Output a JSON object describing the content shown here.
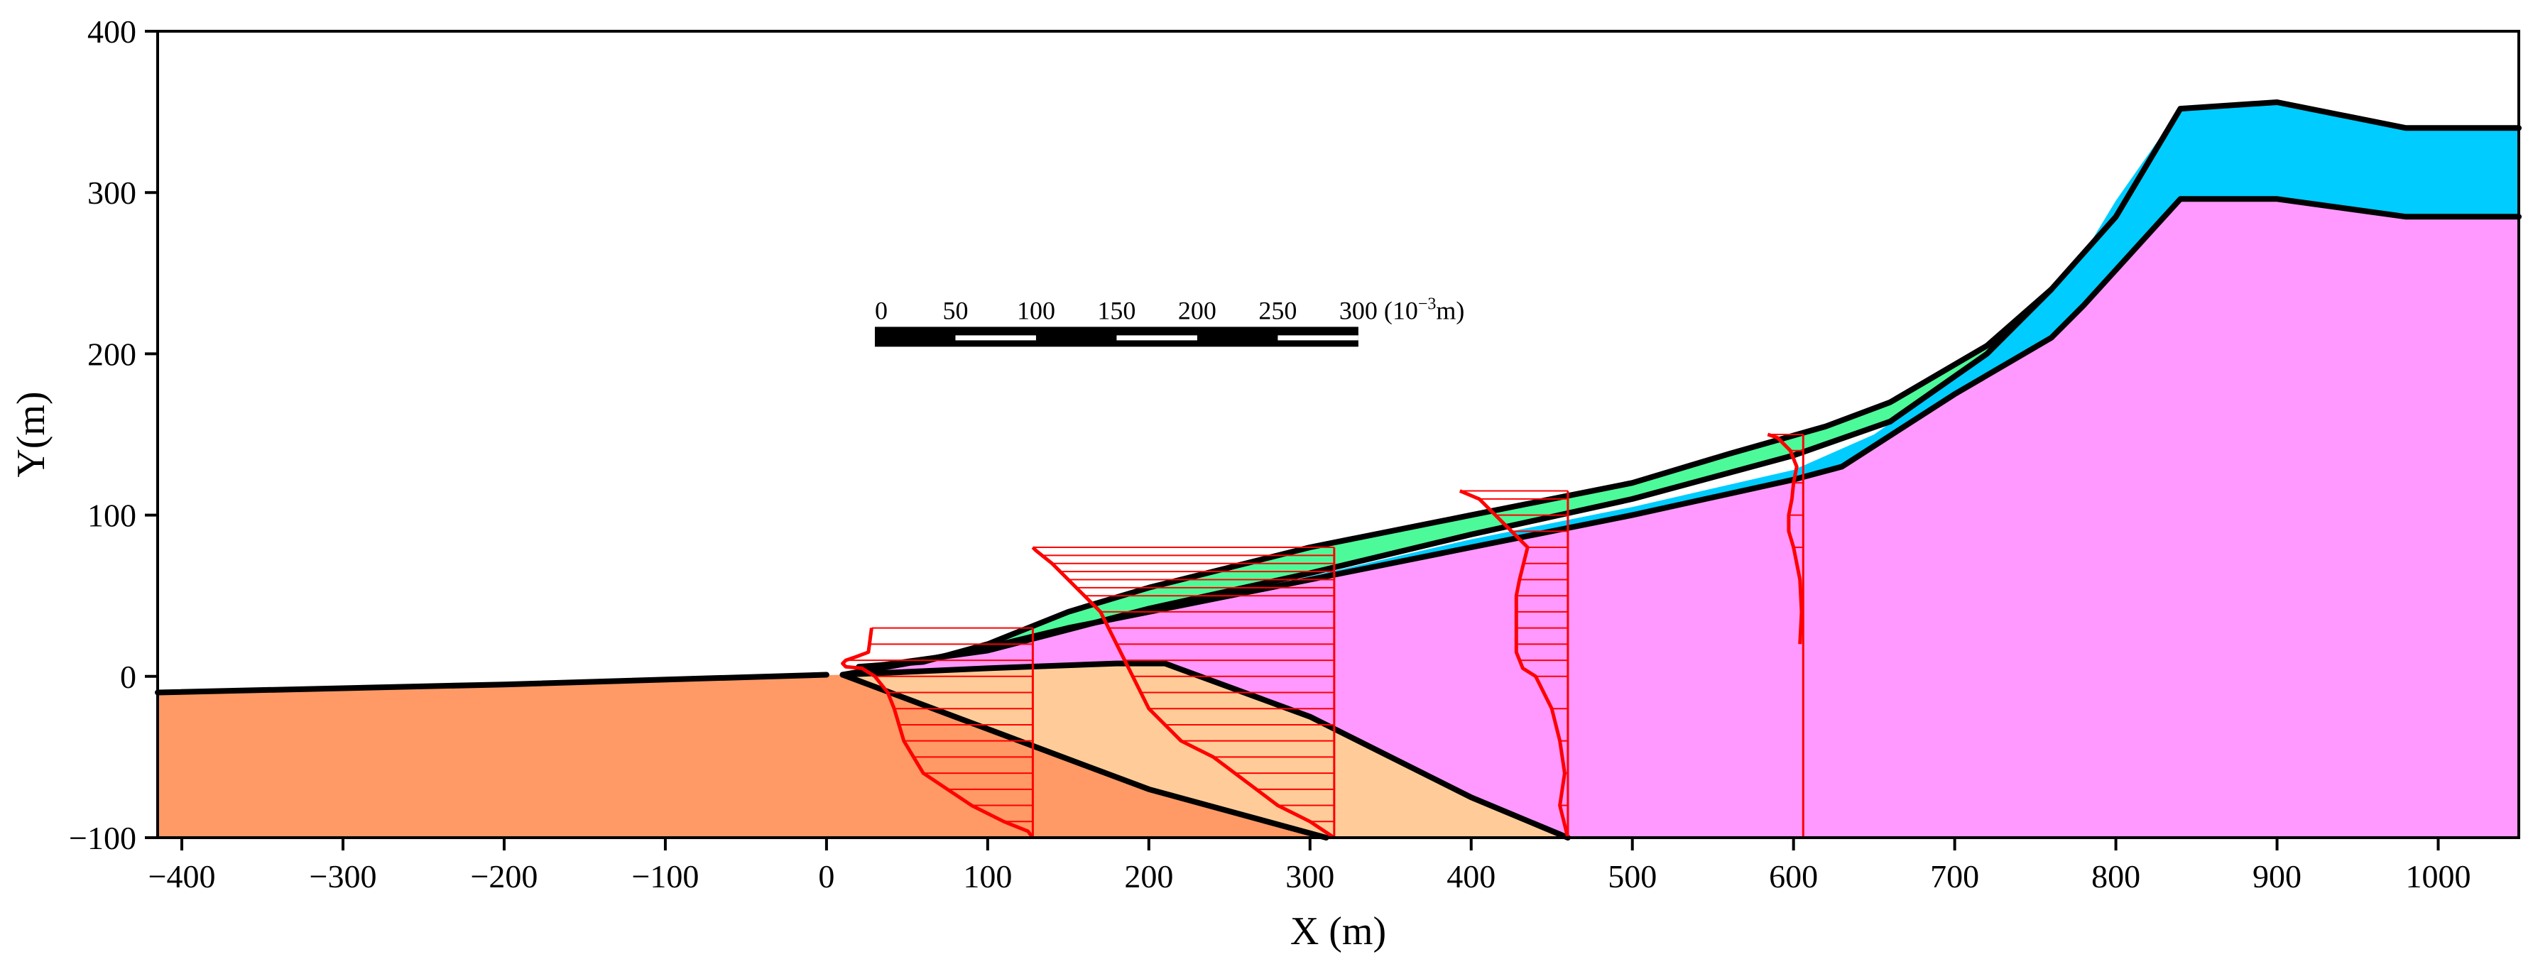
{
  "chart_data": {
    "type": "diagram",
    "title": "",
    "xlabel": "X (m)",
    "ylabel": "Y(m)",
    "xlim": [
      -415,
      1050
    ],
    "ylim": [
      -100,
      400
    ],
    "xticks": [
      -400,
      -300,
      -200,
      -100,
      0,
      100,
      200,
      300,
      400,
      500,
      600,
      700,
      800,
      900,
      1000
    ],
    "yticks": [
      -100,
      0,
      100,
      200,
      300,
      400
    ],
    "colors": {
      "orange_layer": "#FF9966",
      "tan_layer": "#FFCC99",
      "pink_layer": "#FF99FF",
      "blue_layer": "#00CCFF",
      "green_layer": "#4DFA99",
      "profile_line": "#FF0000",
      "boundary": "#000000"
    },
    "layers": [
      {
        "name": "orange",
        "polygon": [
          [
            -415,
            -10
          ],
          [
            10,
            1
          ],
          [
            310,
            -100
          ],
          [
            -415,
            -100
          ]
        ]
      },
      {
        "name": "tan",
        "polygon": [
          [
            10,
            1
          ],
          [
            100,
            5
          ],
          [
            180,
            8
          ],
          [
            210,
            8
          ],
          [
            300,
            -25
          ],
          [
            400,
            -75
          ],
          [
            460,
            -100
          ],
          [
            310,
            -100
          ],
          [
            200,
            -70
          ]
        ]
      },
      {
        "name": "pink",
        "polygon": [
          [
            10,
            1
          ],
          [
            100,
            5
          ],
          [
            180,
            8
          ],
          [
            210,
            8
          ],
          [
            300,
            -25
          ],
          [
            400,
            -75
          ],
          [
            460,
            -100
          ],
          [
            1050,
            -100
          ],
          [
            1050,
            285
          ],
          [
            980,
            285
          ],
          [
            900,
            296
          ],
          [
            840,
            296
          ],
          [
            780,
            230
          ],
          [
            760,
            210
          ],
          [
            700,
            175
          ],
          [
            630,
            130
          ],
          [
            600,
            122
          ],
          [
            500,
            100
          ],
          [
            400,
            80
          ],
          [
            300,
            60
          ],
          [
            200,
            40
          ],
          [
            150,
            30
          ],
          [
            100,
            18
          ],
          [
            50,
            8
          ]
        ]
      },
      {
        "name": "blue",
        "polygon": [
          [
            30,
            5
          ],
          [
            100,
            16
          ],
          [
            200,
            40
          ],
          [
            300,
            62
          ],
          [
            400,
            85
          ],
          [
            500,
            105
          ],
          [
            600,
            128
          ],
          [
            650,
            150
          ],
          [
            700,
            185
          ],
          [
            760,
            238
          ],
          [
            780,
            262
          ],
          [
            800,
            295
          ],
          [
            840,
            352
          ],
          [
            900,
            356
          ],
          [
            980,
            340
          ],
          [
            1050,
            340
          ],
          [
            1050,
            285
          ],
          [
            980,
            285
          ],
          [
            900,
            296
          ],
          [
            840,
            296
          ],
          [
            780,
            230
          ],
          [
            760,
            210
          ],
          [
            700,
            175
          ],
          [
            630,
            130
          ],
          [
            600,
            122
          ],
          [
            500,
            100
          ],
          [
            400,
            80
          ],
          [
            300,
            60
          ],
          [
            200,
            40
          ],
          [
            150,
            30
          ],
          [
            100,
            18
          ],
          [
            50,
            8
          ]
        ]
      },
      {
        "name": "green",
        "polygon": [
          [
            20,
            6
          ],
          [
            60,
            9
          ],
          [
            100,
            20
          ],
          [
            150,
            40
          ],
          [
            200,
            55
          ],
          [
            300,
            80
          ],
          [
            400,
            100
          ],
          [
            500,
            120
          ],
          [
            560,
            138
          ],
          [
            620,
            155
          ],
          [
            660,
            170
          ],
          [
            720,
            205
          ],
          [
            760,
            240
          ],
          [
            720,
            200
          ],
          [
            660,
            158
          ],
          [
            600,
            137
          ],
          [
            500,
            110
          ],
          [
            400,
            88
          ],
          [
            300,
            64
          ],
          [
            200,
            42
          ],
          [
            100,
            16
          ],
          [
            50,
            8
          ]
        ]
      }
    ],
    "boundaries": [
      {
        "name": "ground-surface-left",
        "points": [
          [
            -415,
            -10
          ],
          [
            -200,
            -5
          ],
          [
            0,
            1
          ]
        ]
      },
      {
        "name": "orange-tan-boundary",
        "points": [
          [
            10,
            1
          ],
          [
            200,
            -70
          ],
          [
            310,
            -100
          ]
        ]
      },
      {
        "name": "tan-pink-boundary",
        "points": [
          [
            10,
            1
          ],
          [
            100,
            5
          ],
          [
            180,
            8
          ],
          [
            210,
            8
          ],
          [
            300,
            -25
          ],
          [
            400,
            -75
          ],
          [
            460,
            -100
          ]
        ]
      },
      {
        "name": "slope-surface-top",
        "points": [
          [
            20,
            6
          ],
          [
            60,
            9
          ],
          [
            100,
            20
          ],
          [
            150,
            40
          ],
          [
            200,
            55
          ],
          [
            300,
            80
          ],
          [
            400,
            100
          ],
          [
            500,
            120
          ],
          [
            560,
            138
          ],
          [
            620,
            155
          ],
          [
            660,
            170
          ],
          [
            720,
            205
          ],
          [
            760,
            240
          ],
          [
            800,
            285
          ],
          [
            840,
            352
          ],
          [
            900,
            356
          ],
          [
            980,
            340
          ],
          [
            1050,
            340
          ]
        ]
      },
      {
        "name": "green-blue-boundary",
        "points": [
          [
            20,
            5
          ],
          [
            100,
            16
          ],
          [
            200,
            42
          ],
          [
            300,
            64
          ],
          [
            400,
            88
          ],
          [
            500,
            110
          ],
          [
            600,
            137
          ],
          [
            660,
            158
          ],
          [
            720,
            200
          ],
          [
            760,
            240
          ]
        ]
      },
      {
        "name": "blue-pink-boundary",
        "points": [
          [
            10,
            1
          ],
          [
            50,
            8
          ],
          [
            100,
            18
          ],
          [
            150,
            30
          ],
          [
            200,
            40
          ],
          [
            300,
            60
          ],
          [
            400,
            80
          ],
          [
            500,
            100
          ],
          [
            600,
            122
          ],
          [
            630,
            130
          ],
          [
            700,
            175
          ],
          [
            760,
            210
          ],
          [
            780,
            230
          ],
          [
            840,
            296
          ],
          [
            900,
            296
          ],
          [
            980,
            285
          ],
          [
            1050,
            285
          ]
        ]
      }
    ],
    "displacement_profiles": [
      {
        "x_ref": 128,
        "y_top": 30,
        "y_bottom": -100,
        "curve_x": [
          128,
          125,
          110,
          90,
          60,
          48,
          45,
          42,
          38,
          30,
          22,
          12,
          10,
          12,
          18,
          26,
          28
        ],
        "curve_y": [
          -100,
          -96,
          -90,
          -80,
          -60,
          -40,
          -30,
          -20,
          -10,
          0,
          5,
          6,
          8,
          10,
          12,
          15,
          30
        ],
        "hatch_y": [
          -100,
          -90,
          -80,
          -70,
          -60,
          -50,
          -40,
          -30,
          -20,
          -10,
          0,
          10,
          20,
          30
        ]
      },
      {
        "x_ref": 315,
        "y_top": 80,
        "y_bottom": -100,
        "curve_x": [
          315,
          300,
          280,
          260,
          240,
          220,
          200,
          190,
          180,
          170,
          160,
          150,
          140,
          130,
          128
        ],
        "curve_y": [
          -100,
          -90,
          -80,
          -65,
          -50,
          -40,
          -20,
          0,
          20,
          40,
          50,
          60,
          70,
          78,
          80
        ],
        "hatch_y": [
          -100,
          -90,
          -80,
          -70,
          -60,
          -50,
          -40,
          -30,
          -20,
          -10,
          0,
          10,
          20,
          30,
          40,
          50,
          55,
          60,
          65,
          70,
          75,
          80
        ]
      },
      {
        "x_ref": 460,
        "y_top": 115,
        "y_bottom": -100,
        "curve_x": [
          460,
          455,
          458,
          455,
          450,
          440,
          432,
          428,
          428,
          428,
          430,
          435,
          425,
          415,
          405,
          393
        ],
        "curve_y": [
          -100,
          -80,
          -60,
          -40,
          -20,
          0,
          5,
          15,
          30,
          50,
          60,
          80,
          90,
          100,
          110,
          115
        ],
        "hatch_y": [
          -100,
          -80,
          -60,
          -40,
          -20,
          0,
          10,
          20,
          30,
          40,
          50,
          60,
          70,
          80,
          90,
          100,
          110,
          115
        ]
      },
      {
        "x_ref": 606,
        "y_top": 150,
        "y_bottom": -100,
        "curve_x": [
          604,
          605,
          604,
          600,
          597,
          597,
          599,
          600,
          602,
          598,
          590,
          584
        ],
        "curve_y": [
          20,
          40,
          60,
          80,
          90,
          100,
          110,
          120,
          130,
          140,
          148,
          150
        ],
        "hatch_y": [
          80,
          100,
          120,
          140,
          150
        ]
      }
    ],
    "scale_bar": {
      "labels": [
        "0",
        "50",
        "100",
        "150",
        "200",
        "250",
        "300"
      ],
      "unit_base": "(10",
      "unit_exp": "−3",
      "unit_rest": "m)",
      "bar_x": [
        30,
        330
      ],
      "bar_y": 211
    }
  }
}
